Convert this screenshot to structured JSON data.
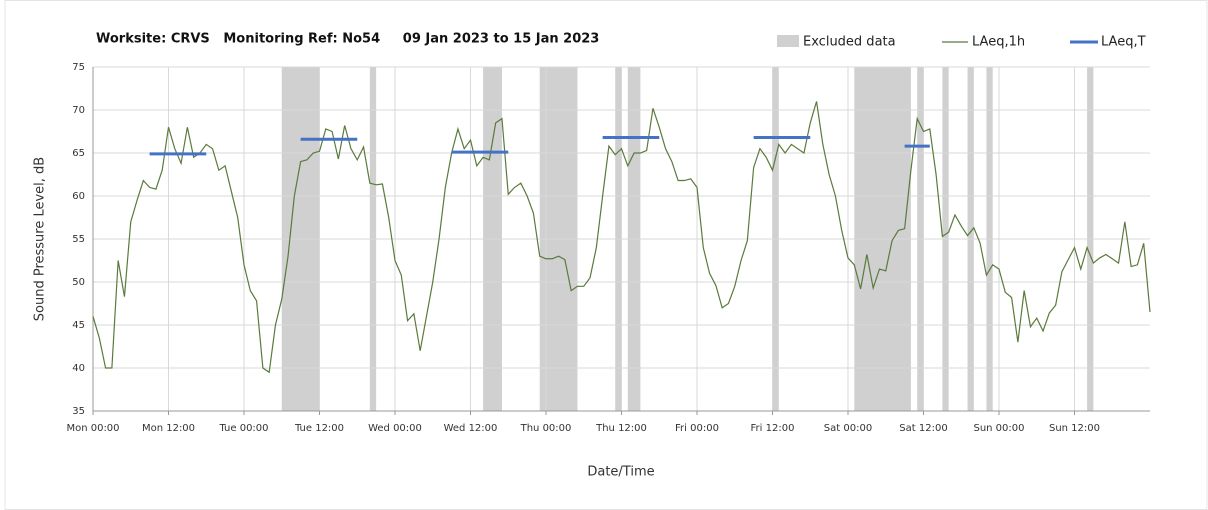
{
  "chart_data": {
    "type": "line",
    "title": "Worksite: CRVS   Monitoring Ref: No54     09 Jan 2023 to 15 Jan 2023",
    "xlabel": "Date/Time",
    "ylabel": "Sound Pressure Level, dB",
    "xlim": [
      0,
      168
    ],
    "xticks": [
      {
        "value": 0,
        "label": "Mon 00:00"
      },
      {
        "value": 12,
        "label": "Mon 12:00"
      },
      {
        "value": 24,
        "label": "Tue 00:00"
      },
      {
        "value": 36,
        "label": "Tue 12:00"
      },
      {
        "value": 48,
        "label": "Wed 00:00"
      },
      {
        "value": 60,
        "label": "Wed 12:00"
      },
      {
        "value": 72,
        "label": "Thu 00:00"
      },
      {
        "value": 84,
        "label": "Thu 12:00"
      },
      {
        "value": 96,
        "label": "Fri 00:00"
      },
      {
        "value": 108,
        "label": "Fri 12:00"
      },
      {
        "value": 120,
        "label": "Sat 00:00"
      },
      {
        "value": 132,
        "label": "Sat 12:00"
      },
      {
        "value": 144,
        "label": "Sun 00:00"
      },
      {
        "value": 156,
        "label": "Sun 12:00"
      }
    ],
    "ylim": [
      35,
      75
    ],
    "yticks": [
      35,
      40,
      45,
      50,
      55,
      60,
      65,
      70,
      75
    ],
    "grid": true,
    "excluded": {
      "name": "Excluded data",
      "color": "#d0d0d0",
      "ranges": [
        [
          30,
          36
        ],
        [
          44,
          45
        ],
        [
          62,
          65
        ],
        [
          71,
          77
        ],
        [
          83,
          84
        ],
        [
          85,
          87
        ],
        [
          108,
          109
        ],
        [
          121,
          130
        ],
        [
          131,
          132
        ],
        [
          135,
          136
        ],
        [
          139,
          140
        ],
        [
          142,
          143
        ],
        [
          158,
          159
        ]
      ]
    },
    "x": [
      0,
      1,
      2,
      3,
      4,
      5,
      6,
      7,
      8,
      9,
      10,
      11,
      12,
      13,
      14,
      15,
      16,
      17,
      18,
      19,
      20,
      21,
      22,
      23,
      24,
      25,
      26,
      27,
      28,
      29,
      30,
      31,
      32,
      33,
      34,
      35,
      36,
      37,
      38,
      39,
      40,
      41,
      42,
      43,
      44,
      45,
      46,
      47,
      48,
      49,
      50,
      51,
      52,
      53,
      54,
      55,
      56,
      57,
      58,
      59,
      60,
      61,
      62,
      63,
      64,
      65,
      66,
      67,
      68,
      69,
      70,
      71,
      72,
      73,
      74,
      75,
      76,
      77,
      78,
      79,
      80,
      81,
      82,
      83,
      84,
      85,
      86,
      87,
      88,
      89,
      90,
      91,
      92,
      93,
      94,
      95,
      96,
      97,
      98,
      99,
      100,
      101,
      102,
      103,
      104,
      105,
      106,
      107,
      108,
      109,
      110,
      111,
      112,
      113,
      114,
      115,
      116,
      117,
      118,
      119,
      120,
      121,
      122,
      123,
      124,
      125,
      126,
      127,
      128,
      129,
      130,
      131,
      132,
      133,
      134,
      135,
      136,
      137,
      138,
      139,
      140,
      141,
      142,
      143,
      144,
      145,
      146,
      147,
      148,
      149,
      150,
      151,
      152,
      153,
      154,
      155,
      156,
      157,
      158,
      159,
      160,
      161,
      162,
      163,
      164,
      165,
      166,
      167,
      168
    ],
    "series": [
      {
        "name": "LAeq,1h",
        "color": "#5b7a3c",
        "values": [
          46,
          43.5,
          40,
          40,
          52.5,
          48.3,
          57,
          59.5,
          61.8,
          61,
          60.8,
          63,
          68,
          65.5,
          63.8,
          68,
          64.5,
          65,
          66,
          65.5,
          63,
          63.5,
          60.5,
          57.5,
          52,
          49,
          47.8,
          40,
          39.5,
          45,
          48,
          53,
          60,
          64,
          64.2,
          65,
          65.2,
          67.8,
          67.5,
          64.3,
          68.2,
          65.5,
          64.2,
          65.7,
          61.5,
          61.3,
          61.4,
          57.5,
          52.5,
          50.8,
          45.5,
          46.3,
          42,
          46,
          50,
          55,
          61,
          65,
          67.8,
          65.5,
          66.5,
          63.5,
          64.5,
          64.2,
          68.5,
          69,
          60.2,
          61,
          61.5,
          60,
          58,
          53,
          52.7,
          52.7,
          53,
          52.6,
          49,
          49.5,
          49.5,
          50.5,
          54,
          60,
          65.8,
          64.8,
          65.5,
          63.5,
          65,
          65,
          65.3,
          70.2,
          68,
          65.5,
          64,
          61.8,
          61.8,
          62,
          61,
          54,
          51,
          49.6,
          47,
          47.5,
          49.5,
          52.5,
          54.8,
          63.3,
          65.5,
          64.5,
          63,
          66,
          65,
          66,
          65.5,
          65,
          68.5,
          71,
          66,
          62.5,
          60,
          56,
          52.8,
          52,
          49.2,
          53.2,
          49.3,
          51.5,
          51.3,
          54.8,
          56,
          56.2,
          63,
          69,
          67.5,
          67.8,
          62.5,
          55.3,
          55.8,
          57.8,
          56.5,
          55.4,
          56.3,
          54.5,
          50.8,
          52,
          51.5,
          48.8,
          48.2,
          43,
          49,
          44.8,
          45.8,
          44.3,
          46.4,
          47.3,
          51.2,
          52.6,
          54,
          51.5,
          54,
          52.2,
          52.8,
          53.2,
          52.7,
          52.2,
          57,
          51.8,
          52,
          54.5,
          46.5
        ]
      },
      {
        "name": "LAeq,T",
        "color": "#4472c4",
        "segments": [
          {
            "start": 9,
            "end": 18,
            "value": 64.9
          },
          {
            "start": 33,
            "end": 42,
            "value": 66.6
          },
          {
            "start": 57,
            "end": 66,
            "value": 65.1
          },
          {
            "start": 81,
            "end": 90,
            "value": 66.8
          },
          {
            "start": 105,
            "end": 114,
            "value": 66.8
          },
          {
            "start": 129,
            "end": 133,
            "value": 65.8
          }
        ]
      }
    ]
  }
}
